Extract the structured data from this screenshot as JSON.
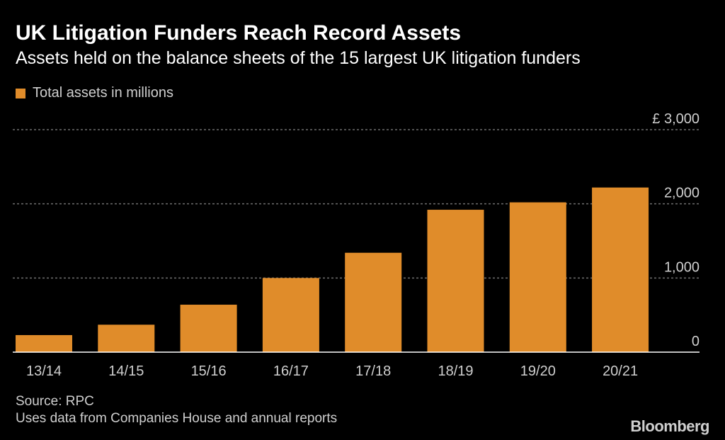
{
  "header": {
    "title": "UK Litigation Funders Reach Record Assets",
    "subtitle": "Assets held on the balance sheets of the 15 largest UK litigation funders"
  },
  "colors": {
    "background": "#000000",
    "bar": "#e08c2a",
    "grid": "#6e6e6e",
    "axis_text": "#cfcfcf"
  },
  "chart_data": {
    "type": "bar",
    "legend": {
      "label": "Total assets in millions",
      "placement": "top-left"
    },
    "categories": [
      "13/14",
      "14/15",
      "15/16",
      "16/17",
      "17/18",
      "18/19",
      "19/20",
      "20/21"
    ],
    "series": [
      {
        "name": "Total assets in millions",
        "values": [
          230,
          370,
          640,
          1000,
          1340,
          1920,
          2020,
          2220
        ]
      }
    ],
    "ylim": [
      0,
      3000
    ],
    "yticks": [
      0,
      1000,
      2000,
      3000
    ],
    "ytick_labels": [
      "0",
      "1,000",
      "2,000",
      "£ 3,000"
    ],
    "yaxis_side": "right",
    "grid": true
  },
  "footer": {
    "source": "Source: RPC",
    "note": "Uses data from Companies House and annual reports",
    "brand": "Bloomberg"
  }
}
